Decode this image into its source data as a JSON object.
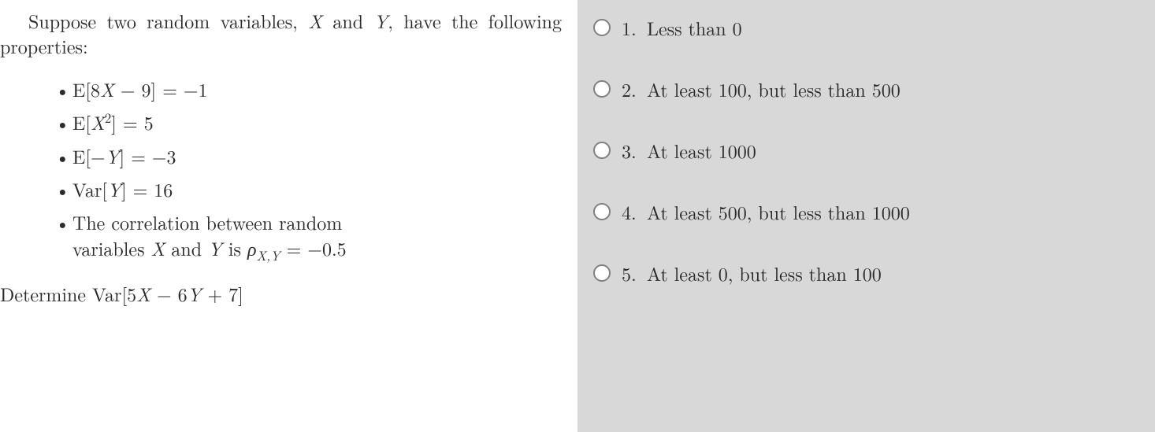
{
  "question": {
    "intro_part1": "Suppose two random variables, ",
    "var_x": "X",
    "intro_part2": " and ",
    "var_y": "Y",
    "intro_part3": ", have the following properties:",
    "properties": {
      "p1_lhs": "E[8",
      "p1_var": "X",
      "p1_rhs": " − 9] = −1",
      "p2_lhs": "E[",
      "p2_var": "X",
      "p2_sup": "2",
      "p2_rhs": "] = 5",
      "p3_lhs": "E[−",
      "p3_var": "Y",
      "p3_rhs": "] = −3",
      "p4_lhs": "Var[",
      "p4_var": "Y",
      "p4_rhs": "] = 16",
      "p5_line1": "The correlation between random",
      "p5_line2a": "variables ",
      "p5_varx": "X",
      "p5_line2b": " and ",
      "p5_vary": "Y",
      "p5_line2c": " is ",
      "p5_rho": "ρ",
      "p5_sub": "X,Y",
      "p5_eq": " = −0.5"
    },
    "final_a": "Determine Var[5",
    "final_x": "X",
    "final_b": " − 6",
    "final_y": "Y",
    "final_c": " + 7]"
  },
  "options": [
    {
      "num": "1.",
      "text": "Less than 0"
    },
    {
      "num": "2.",
      "text": "At least 100, but less than 500"
    },
    {
      "num": "3.",
      "text": "At least 1000"
    },
    {
      "num": "4.",
      "text": "At least 500, but less than 1000"
    },
    {
      "num": "5.",
      "text": "At least 0, but less than 100"
    }
  ]
}
